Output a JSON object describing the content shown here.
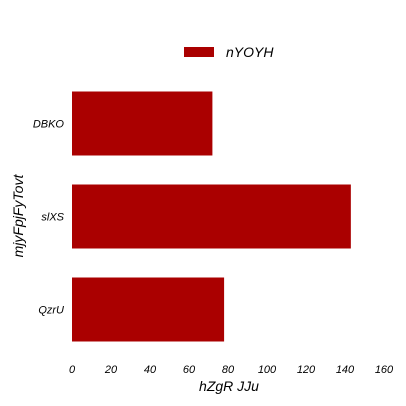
{
  "chart_data": {
    "type": "bar",
    "orientation": "horizontal",
    "categories": [
      "DBKO",
      "slXS",
      "QzrU"
    ],
    "series": [
      {
        "name": "nYOYH",
        "values": [
          72,
          143,
          78
        ],
        "color": "#aa0000"
      }
    ],
    "xlabel": "hZgR JJu",
    "ylabel": "mjyFpjFyTovt",
    "xlim": [
      0,
      160
    ],
    "xticks": [
      0,
      20,
      40,
      60,
      80,
      100,
      120,
      140,
      160
    ],
    "grid": false,
    "legend_position": "top-center"
  }
}
